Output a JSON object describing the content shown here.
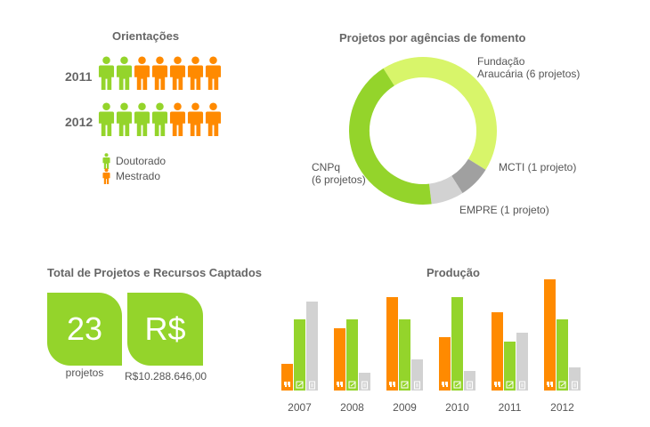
{
  "colors": {
    "doutorado": "#94d42b",
    "mestrado": "#ff8a00",
    "pie_fundacao": "#d8f56a",
    "pie_cnpq": "#94d42b",
    "pie_mcti": "#a0a0a0",
    "pie_empre": "#d2d2d2",
    "bar_c": "#ff8a00",
    "bar_j": "#94d42b",
    "bar_p": "#d2d2d2"
  },
  "orientacoes": {
    "title": "Orientações",
    "rows": [
      {
        "year": "2011",
        "doutorado": 2,
        "mestrado": 5
      },
      {
        "year": "2012",
        "doutorado": 4,
        "mestrado": 3
      }
    ],
    "legend": {
      "doutorado": "Doutorado",
      "mestrado": "Mestrado"
    }
  },
  "totais": {
    "title": "Total de Projetos e Recursos Captados",
    "projetos_value": "23",
    "projetos_caption": "projetos",
    "recursos_symbol": "R$",
    "recursos_caption": "R$10.288.646,00"
  },
  "chart_data": [
    {
      "type": "pie",
      "title": "Projetos por agências de fomento",
      "labels": [
        "Fundação Araucária (6 projetos)",
        "MCTI (1 projeto)",
        "EMPRE (1 projeto)",
        "CNPq (6 projetos)"
      ],
      "values": [
        6,
        1,
        1,
        6
      ],
      "label_lines": {
        "fundacao": [
          "Fundação",
          "Araucária (6 projetos)"
        ],
        "mcti": [
          "MCTI (1 projeto)"
        ],
        "empre": [
          "EMPRE (1 projeto)"
        ],
        "cnpq": [
          "CNPq",
          "(6 projetos)"
        ]
      }
    },
    {
      "type": "bar",
      "title": "Produção",
      "categories": [
        "2007",
        "2008",
        "2009",
        "2010",
        "2011",
        "2012"
      ],
      "series": [
        {
          "icon": "quote-icon",
          "values": [
            3,
            7,
            10.5,
            6,
            8.8,
            12.5
          ]
        },
        {
          "icon": "edit-icon",
          "values": [
            8,
            8,
            8,
            10.5,
            5.5,
            8
          ]
        },
        {
          "icon": "document-icon",
          "values": [
            10,
            2,
            3.5,
            2.2,
            6.5,
            2.6
          ]
        }
      ]
    }
  ]
}
